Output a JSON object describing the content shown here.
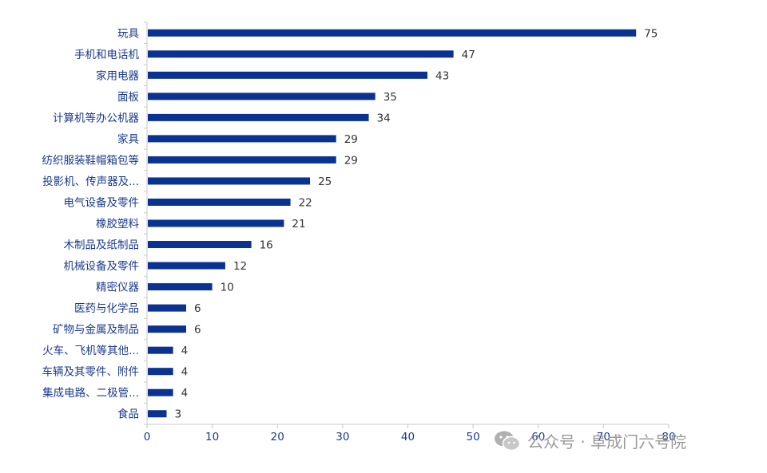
{
  "chart_data": {
    "type": "bar",
    "orientation": "horizontal",
    "categories": [
      "玩具",
      "手机和电话机",
      "家用电器",
      "面板",
      "计算机等办公机器",
      "家具",
      "纺织服装鞋帽箱包等",
      "投影机、传声器及...",
      "电气设备及零件",
      "橡胶塑料",
      "木制品及纸制品",
      "机械设备及零件",
      "精密仪器",
      "医药与化学品",
      "矿物与金属及制品",
      "火车、飞机等其他...",
      "车辆及其零件、附件",
      "集成电路、二极管...",
      "食品"
    ],
    "values": [
      75,
      47,
      43,
      35,
      34,
      29,
      29,
      25,
      22,
      21,
      16,
      12,
      10,
      6,
      6,
      4,
      4,
      4,
      3
    ],
    "xticks": [
      0,
      10,
      20,
      30,
      40,
      50,
      60,
      70,
      80
    ],
    "xlim": [
      0,
      80
    ],
    "title": "",
    "xlabel": "",
    "ylabel": "",
    "grid": false,
    "legend": "none",
    "bar_color": "#0a3290",
    "axis_color": "#c8c8c8"
  },
  "watermark": {
    "text": "公众号 · 阜成门六号院",
    "icon": "wechat-icon"
  }
}
